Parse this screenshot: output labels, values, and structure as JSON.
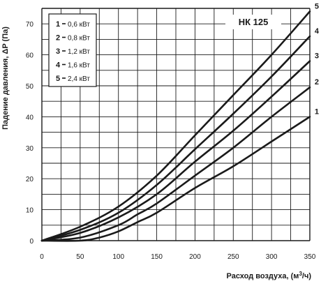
{
  "chart_data": {
    "type": "line",
    "model_label": "НК 125",
    "xlabel_text": "Расход воздуха, (м",
    "xlabel_sup": "3",
    "xlabel_tail": "/ч)",
    "ylabel": "Падение давления, ΔP (Па)",
    "xlim": [
      0,
      350
    ],
    "ylim": [
      0,
      75
    ],
    "x_ticks": [
      0,
      50,
      100,
      150,
      200,
      250,
      300,
      350
    ],
    "y_ticks": [
      0,
      10,
      20,
      30,
      40,
      50,
      60,
      70
    ],
    "grid": true,
    "legend_position": "top-left",
    "series": [
      {
        "name": "1",
        "legend_value": "0,6 кВт",
        "x": [
          0,
          50,
          75,
          100,
          125,
          150,
          200,
          250,
          300,
          350
        ],
        "y": [
          0,
          0,
          1,
          3,
          6,
          9,
          17,
          24,
          32,
          40
        ]
      },
      {
        "name": "2",
        "legend_value": "0,8 кВт",
        "x": [
          0,
          50,
          100,
          125,
          150,
          200,
          250,
          300,
          350
        ],
        "y": [
          0,
          1,
          5,
          8.5,
          12,
          21,
          30,
          40,
          49.5
        ]
      },
      {
        "name": "3",
        "legend_value": "1,2 кВт",
        "x": [
          0,
          50,
          100,
          150,
          200,
          250,
          300,
          350
        ],
        "y": [
          0,
          2.5,
          7.5,
          15,
          25.5,
          35.5,
          46.5,
          58
        ]
      },
      {
        "name": "4",
        "legend_value": "1,6 кВт",
        "x": [
          0,
          50,
          100,
          150,
          200,
          250,
          300,
          350
        ],
        "y": [
          0,
          3.5,
          9,
          18,
          29.5,
          41,
          53,
          66
        ]
      },
      {
        "name": "5",
        "legend_value": "2,4 кВт",
        "x": [
          0,
          50,
          100,
          150,
          200,
          250,
          300,
          350
        ],
        "y": [
          0,
          4.5,
          11,
          21,
          34,
          47,
          60,
          74
        ]
      }
    ]
  }
}
